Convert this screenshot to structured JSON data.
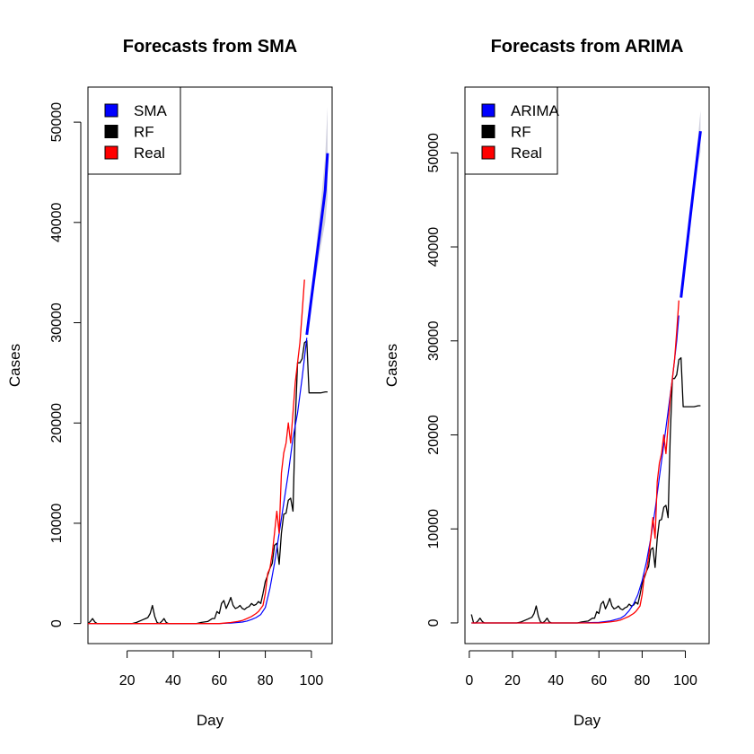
{
  "chart_data": [
    {
      "type": "line",
      "title": "Forecasts from SMA",
      "xlabel": "Day",
      "ylabel": "Cases",
      "xlim": [
        3,
        109
      ],
      "ylim": [
        -2000,
        53500
      ],
      "xticks": [
        20,
        40,
        60,
        80,
        100
      ],
      "yticks": [
        0,
        10000,
        20000,
        30000,
        40000,
        50000
      ],
      "legend": {
        "position": "top-left",
        "entries": [
          {
            "label": "SMA",
            "color": "#0000ff"
          },
          {
            "label": "RF",
            "color": "#000000"
          },
          {
            "label": "Real",
            "color": "#ff0000"
          }
        ]
      },
      "series": [
        {
          "role": "black",
          "x": [
            3,
            4,
            5,
            6,
            7,
            8,
            10,
            12,
            14,
            16,
            18,
            20,
            22,
            24,
            26,
            27,
            28,
            29,
            30,
            31,
            32,
            33,
            34,
            35,
            36,
            37,
            38,
            40,
            45,
            50,
            52,
            55,
            57,
            58,
            59,
            60,
            61,
            62,
            63,
            64,
            65,
            66,
            67,
            68,
            69,
            70,
            71,
            72,
            73,
            74,
            75,
            76,
            77,
            78,
            79,
            80,
            81,
            82,
            83,
            84,
            85,
            86,
            87,
            88,
            89,
            90,
            91,
            92,
            93,
            94,
            95,
            96,
            97,
            98,
            99,
            100,
            102,
            104,
            106,
            107
          ],
          "y": [
            0,
            200,
            500,
            150,
            0,
            0,
            0,
            0,
            0,
            0,
            0,
            0,
            0,
            100,
            300,
            400,
            500,
            600,
            1000,
            1800,
            700,
            100,
            0,
            200,
            500,
            100,
            0,
            0,
            0,
            0,
            100,
            200,
            500,
            500,
            1200,
            1000,
            2000,
            2300,
            1500,
            2000,
            2600,
            1800,
            1500,
            1600,
            1800,
            1500,
            1400,
            1600,
            1700,
            2000,
            1800,
            1900,
            2200,
            2000,
            3000,
            4200,
            4800,
            5500,
            6000,
            7800,
            8000,
            5900,
            9000,
            10900,
            11000,
            12300,
            12500,
            11200,
            20000,
            26000,
            26000,
            26400,
            28000,
            28200,
            23000,
            23000,
            23000,
            23000,
            23100,
            23100
          ]
        },
        {
          "role": "red",
          "x": [
            3,
            10,
            20,
            30,
            40,
            50,
            60,
            65,
            68,
            70,
            72,
            74,
            76,
            77,
            78,
            79,
            80,
            81,
            82,
            83,
            84,
            85,
            86,
            87,
            88,
            89,
            90,
            91,
            92,
            93,
            94,
            95,
            96,
            97
          ],
          "y": [
            0,
            0,
            0,
            0,
            0,
            0,
            0,
            100,
            200,
            300,
            500,
            700,
            1000,
            1200,
            1500,
            1800,
            3000,
            5000,
            5500,
            7000,
            9000,
            11200,
            9000,
            15000,
            17000,
            18000,
            20000,
            18000,
            21000,
            24000,
            26000,
            28000,
            31000,
            34300
          ]
        },
        {
          "role": "blue-fitted",
          "x": [
            3,
            10,
            20,
            30,
            40,
            50,
            60,
            65,
            70,
            72,
            74,
            76,
            78,
            80,
            82,
            84,
            86,
            88,
            90,
            92,
            94,
            96,
            98
          ],
          "y": [
            0,
            0,
            0,
            0,
            0,
            0,
            0,
            50,
            150,
            250,
            400,
            600,
            900,
            1600,
            3500,
            6000,
            9000,
            12000,
            15000,
            18500,
            21000,
            24500,
            28500
          ]
        },
        {
          "role": "blue-forecast",
          "x": [
            98,
            100,
            102,
            104,
            106,
            107
          ],
          "y": [
            28800,
            32400,
            36000,
            39600,
            43200,
            46900
          ]
        },
        {
          "role": "forecast-band",
          "x": [
            98,
            100,
            102,
            104,
            106,
            107
          ],
          "upper": [
            29100,
            33200,
            37400,
            41700,
            46600,
            51500
          ],
          "lower": [
            28500,
            31600,
            34600,
            37500,
            40000,
            42500
          ]
        }
      ]
    },
    {
      "type": "line",
      "title": "Forecasts from ARIMA",
      "xlabel": "Day",
      "ylabel": "Cases",
      "xlim": [
        -2,
        111
      ],
      "ylim": [
        -2200,
        57000
      ],
      "xticks": [
        0,
        20,
        40,
        60,
        80,
        100
      ],
      "yticks": [
        0,
        10000,
        20000,
        30000,
        40000,
        50000
      ],
      "legend": {
        "position": "top-left",
        "entries": [
          {
            "label": "ARIMA",
            "color": "#0000ff"
          },
          {
            "label": "RF",
            "color": "#000000"
          },
          {
            "label": "Real",
            "color": "#ff0000"
          }
        ]
      },
      "series": [
        {
          "role": "black",
          "x": [
            1,
            2,
            3,
            4,
            5,
            6,
            7,
            8,
            10,
            12,
            14,
            16,
            18,
            20,
            22,
            24,
            26,
            27,
            28,
            29,
            30,
            31,
            32,
            33,
            34,
            35,
            36,
            37,
            38,
            40,
            45,
            50,
            52,
            55,
            57,
            58,
            59,
            60,
            61,
            62,
            63,
            64,
            65,
            66,
            67,
            68,
            69,
            70,
            71,
            72,
            73,
            74,
            75,
            76,
            77,
            78,
            79,
            80,
            81,
            82,
            83,
            84,
            85,
            86,
            87,
            88,
            89,
            90,
            91,
            92,
            93,
            94,
            95,
            96,
            97,
            98,
            99,
            100,
            102,
            104,
            106,
            107
          ],
          "y": [
            900,
            0,
            0,
            200,
            500,
            150,
            0,
            0,
            0,
            0,
            0,
            0,
            0,
            0,
            0,
            100,
            300,
            400,
            500,
            600,
            1000,
            1800,
            700,
            100,
            0,
            200,
            500,
            100,
            0,
            0,
            0,
            0,
            100,
            200,
            500,
            500,
            1200,
            1000,
            2000,
            2300,
            1500,
            2000,
            2600,
            1800,
            1500,
            1600,
            1800,
            1500,
            1400,
            1600,
            1700,
            2000,
            1800,
            1900,
            2200,
            2000,
            3000,
            4200,
            4800,
            5500,
            6000,
            7800,
            8000,
            5900,
            9000,
            10900,
            11000,
            12300,
            12500,
            11200,
            20000,
            26000,
            26000,
            26400,
            28000,
            28200,
            23000,
            23000,
            23000,
            23000,
            23100,
            23100
          ]
        },
        {
          "role": "red",
          "x": [
            1,
            10,
            20,
            30,
            40,
            50,
            60,
            65,
            68,
            70,
            72,
            74,
            76,
            77,
            78,
            79,
            80,
            81,
            82,
            83,
            84,
            85,
            86,
            87,
            88,
            89,
            90,
            91,
            92,
            93,
            94,
            95,
            96,
            97
          ],
          "y": [
            0,
            0,
            0,
            0,
            0,
            0,
            0,
            100,
            200,
            300,
            500,
            700,
            1000,
            1200,
            1500,
            1800,
            3000,
            5000,
            5500,
            7000,
            9000,
            11200,
            9000,
            15000,
            17000,
            18000,
            20000,
            18000,
            21000,
            24000,
            26000,
            28000,
            31000,
            34300
          ]
        },
        {
          "role": "blue-fitted",
          "x": [
            1,
            10,
            20,
            30,
            40,
            50,
            60,
            65,
            70,
            72,
            74,
            76,
            78,
            80,
            82,
            84,
            86,
            88,
            90,
            92,
            94,
            96,
            97
          ],
          "y": [
            0,
            0,
            0,
            0,
            0,
            0,
            50,
            200,
            500,
            800,
            1300,
            2000,
            3000,
            4500,
            6500,
            9000,
            12000,
            15500,
            19000,
            22500,
            26000,
            30000,
            32700
          ]
        },
        {
          "role": "blue-forecast",
          "x": [
            98,
            100,
            102,
            104,
            106,
            107
          ],
          "y": [
            34600,
            38600,
            42600,
            46600,
            50500,
            52300
          ]
        },
        {
          "role": "forecast-band",
          "x": [
            98,
            100,
            102,
            104,
            106,
            107
          ],
          "upper": [
            34800,
            39000,
            43300,
            47700,
            52000,
            54500
          ],
          "lower": [
            34400,
            38200,
            41900,
            45500,
            49000,
            50100
          ]
        }
      ]
    }
  ]
}
